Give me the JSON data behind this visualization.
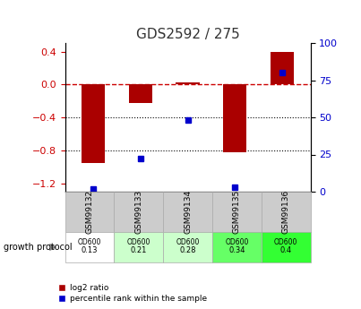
{
  "title": "GDS2592 / 275",
  "samples": [
    "GSM99132",
    "GSM99133",
    "GSM99134",
    "GSM99135",
    "GSM99136"
  ],
  "log2_ratio": [
    -0.95,
    -0.22,
    0.02,
    -0.82,
    0.4
  ],
  "percentile_rank": [
    2,
    22,
    48,
    3,
    80
  ],
  "od600_values": [
    "0.13",
    "0.21",
    "0.28",
    "0.34",
    "0.4"
  ],
  "od600_colors": [
    "#ffffff",
    "#ccffcc",
    "#ccffcc",
    "#66ff66",
    "#33ff33"
  ],
  "bar_color": "#aa0000",
  "dot_color": "#0000cc",
  "ylim_left": [
    -1.3,
    0.5
  ],
  "ylim_right": [
    0,
    100
  ],
  "yticks_left": [
    0.4,
    0.0,
    -0.4,
    -0.8,
    -1.2
  ],
  "yticks_right": [
    100,
    75,
    50,
    25,
    0
  ],
  "hline_y": 0.0,
  "dotted_lines": [
    -0.4,
    -0.8
  ],
  "title_color": "#333333",
  "left_tick_color": "#cc0000",
  "right_tick_color": "#0000cc",
  "background_color": "#ffffff",
  "plot_bg_color": "#ffffff"
}
